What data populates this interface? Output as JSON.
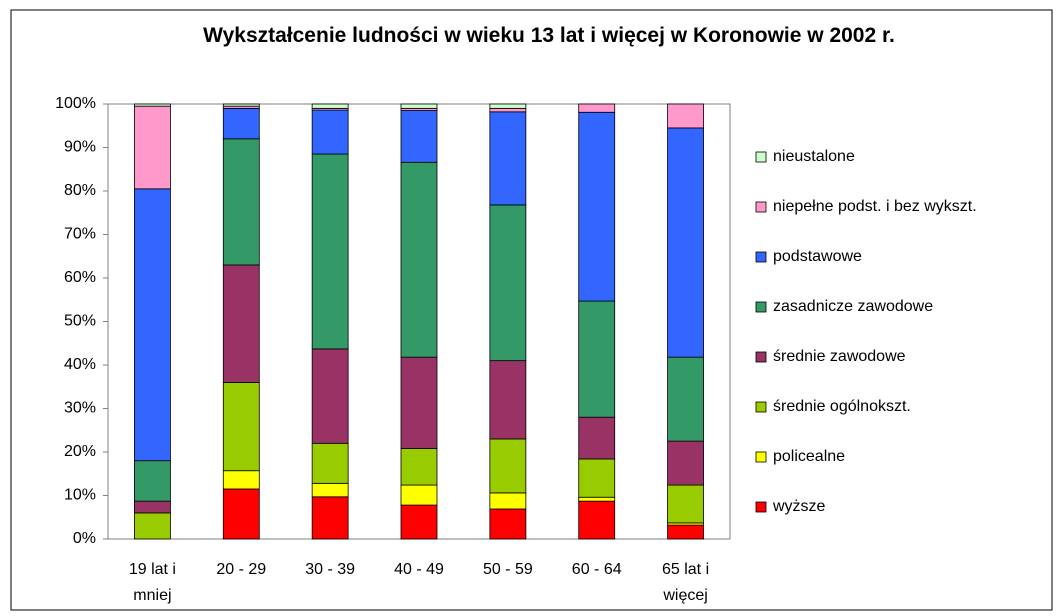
{
  "chart_data": {
    "type": "bar",
    "stacked": true,
    "title": "Wykształcenie ludności w wieku 13 lat i więcej w Koronowie w 2002 r.",
    "categories": [
      "19 lat i mniej",
      "20 - 29",
      "30 - 39",
      "40 - 49",
      "50 - 59",
      "60 - 64",
      "65 lat i więcej"
    ],
    "series": [
      {
        "name": "wyższe",
        "color": "#ff0000",
        "values": [
          0,
          11.5,
          9.7,
          7.8,
          6.9,
          8.7,
          3.2
        ]
      },
      {
        "name": "policealne",
        "color": "#ffff00",
        "values": [
          0,
          4.2,
          3.1,
          4.6,
          3.7,
          0.9,
          0.5
        ]
      },
      {
        "name": "średnie ogólnokszt.",
        "color": "#99cc00",
        "values": [
          6,
          20.3,
          9.2,
          8.4,
          12.4,
          8.8,
          8.7
        ]
      },
      {
        "name": "średnie zawodowe",
        "color": "#993366",
        "values": [
          2.7,
          27,
          21.7,
          21,
          18,
          9.6,
          10.1
        ]
      },
      {
        "name": "zasadnicze zawodowe",
        "color": "#339966",
        "values": [
          9.3,
          29,
          44.8,
          44.8,
          35.8,
          26.7,
          19.3
        ]
      },
      {
        "name": "podstawowe",
        "color": "#3366ff",
        "values": [
          62.5,
          7,
          10.1,
          11.9,
          21.4,
          43.4,
          52.7
        ]
      },
      {
        "name": "niepełne podst. i bez wykszt.",
        "color": "#ff99cc",
        "values": [
          19,
          0.5,
          0.4,
          0.5,
          0.8,
          1.9,
          5.5
        ]
      },
      {
        "name": "nieustalone",
        "color": "#ccffcc",
        "values": [
          0.5,
          0.5,
          1,
          1,
          1,
          0,
          0
        ]
      }
    ],
    "ylim": [
      0,
      100
    ],
    "yticks": [
      {
        "value": 0,
        "label": "0%"
      },
      {
        "value": 10,
        "label": "10%"
      },
      {
        "value": 20,
        "label": "20%"
      },
      {
        "value": 30,
        "label": "30%"
      },
      {
        "value": 40,
        "label": "40%"
      },
      {
        "value": 50,
        "label": "50%"
      },
      {
        "value": 60,
        "label": "60%"
      },
      {
        "value": 70,
        "label": "70%"
      },
      {
        "value": 80,
        "label": "80%"
      },
      {
        "value": 90,
        "label": "90%"
      },
      {
        "value": 100,
        "label": "100%"
      }
    ],
    "legend": "right"
  }
}
